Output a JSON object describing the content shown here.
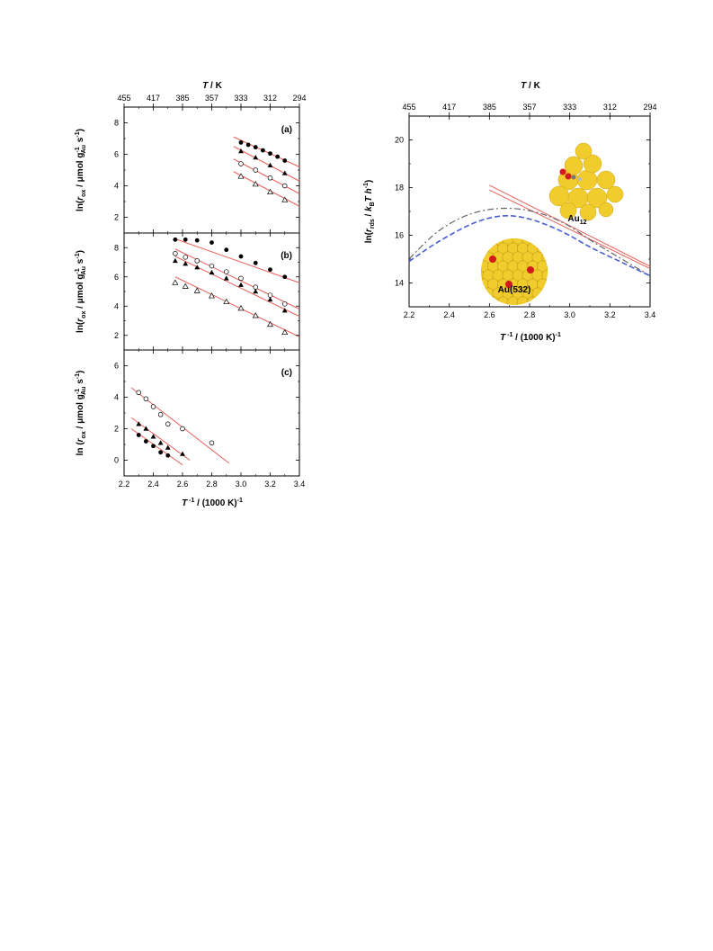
{
  "chart_data": [
    {
      "id": "a",
      "type": "scatter",
      "panel_label": "(a)",
      "xlabel": "T ⁻¹ / (1000 K)⁻¹",
      "ylabel": "ln(r ox / μmol g Au ⁻¹ s⁻¹)",
      "top_axis_label": "T / K",
      "top_ticks": [
        "455",
        "417",
        "385",
        "357",
        "333",
        "312",
        "294"
      ],
      "xlim": [
        2.2,
        3.4
      ],
      "ylim": [
        1,
        9
      ],
      "yticks": [
        2,
        4,
        6,
        8
      ],
      "grid": false,
      "series": [
        {
          "marker": "filled-circle",
          "points": [
            [
              3.0,
              6.75
            ],
            [
              3.05,
              6.6
            ],
            [
              3.1,
              6.45
            ],
            [
              3.15,
              6.25
            ],
            [
              3.2,
              6.05
            ],
            [
              3.25,
              5.85
            ],
            [
              3.3,
              5.6
            ]
          ],
          "fit": [
            [
              2.95,
              7.1
            ],
            [
              3.4,
              5.2
            ]
          ]
        },
        {
          "marker": "filled-triangle",
          "points": [
            [
              3.0,
              6.2
            ],
            [
              3.1,
              5.8
            ],
            [
              3.2,
              5.3
            ],
            [
              3.3,
              4.8
            ]
          ],
          "fit": [
            [
              2.95,
              6.5
            ],
            [
              3.4,
              4.3
            ]
          ]
        },
        {
          "marker": "open-circle",
          "points": [
            [
              3.0,
              5.4
            ],
            [
              3.1,
              5.0
            ],
            [
              3.2,
              4.5
            ],
            [
              3.3,
              4.0
            ]
          ],
          "fit": [
            [
              2.95,
              5.7
            ],
            [
              3.4,
              3.5
            ]
          ]
        },
        {
          "marker": "open-triangle",
          "points": [
            [
              3.0,
              4.6
            ],
            [
              3.1,
              4.1
            ],
            [
              3.2,
              3.6
            ],
            [
              3.3,
              3.1
            ]
          ],
          "fit": [
            [
              2.95,
              4.9
            ],
            [
              3.4,
              2.7
            ]
          ]
        }
      ]
    },
    {
      "id": "b",
      "type": "scatter",
      "panel_label": "(b)",
      "xlabel": "T ⁻¹ / (1000 K)⁻¹",
      "ylabel": "ln(r ox / μmol g Au ⁻¹ s⁻¹)",
      "xlim": [
        2.2,
        3.4
      ],
      "ylim": [
        1,
        9
      ],
      "yticks": [
        2,
        4,
        6,
        8
      ],
      "grid": false,
      "series": [
        {
          "marker": "filled-circle",
          "points": [
            [
              2.55,
              8.55
            ],
            [
              2.62,
              8.55
            ],
            [
              2.7,
              8.5
            ],
            [
              2.8,
              8.35
            ],
            [
              2.9,
              7.85
            ],
            [
              3.0,
              7.4
            ],
            [
              3.1,
              6.95
            ],
            [
              3.2,
              6.5
            ],
            [
              3.3,
              6.0
            ]
          ],
          "fit": [
            [
              2.55,
              8.6
            ],
            [
              3.4,
              5.6
            ]
          ]
        },
        {
          "marker": "filled-triangle",
          "points": [
            [
              2.55,
              7.1
            ],
            [
              2.62,
              6.9
            ],
            [
              2.7,
              6.65
            ],
            [
              2.8,
              6.3
            ],
            [
              2.9,
              5.9
            ],
            [
              3.0,
              5.45
            ],
            [
              3.1,
              5.0
            ],
            [
              3.2,
              4.45
            ],
            [
              3.3,
              3.7
            ]
          ],
          "fit": [
            [
              2.55,
              7.4
            ],
            [
              3.4,
              3.3
            ]
          ]
        },
        {
          "marker": "open-circle",
          "points": [
            [
              2.55,
              7.6
            ],
            [
              2.62,
              7.35
            ],
            [
              2.7,
              7.1
            ],
            [
              2.8,
              6.75
            ],
            [
              2.9,
              6.35
            ],
            [
              3.0,
              5.9
            ],
            [
              3.1,
              5.3
            ],
            [
              3.2,
              4.75
            ],
            [
              3.3,
              4.15
            ]
          ],
          "fit": [
            [
              2.55,
              7.9
            ],
            [
              3.4,
              3.8
            ]
          ]
        },
        {
          "marker": "open-triangle",
          "points": [
            [
              2.55,
              5.6
            ],
            [
              2.62,
              5.35
            ],
            [
              2.7,
              5.05
            ],
            [
              2.8,
              4.7
            ],
            [
              2.9,
              4.3
            ],
            [
              3.0,
              3.85
            ],
            [
              3.1,
              3.35
            ],
            [
              3.2,
              2.75
            ],
            [
              3.3,
              2.2
            ]
          ],
          "fit": [
            [
              2.55,
              6.0
            ],
            [
              3.4,
              1.9
            ]
          ]
        }
      ]
    },
    {
      "id": "c",
      "type": "scatter",
      "panel_label": "(c)",
      "xlabel": "T ⁻¹ / (1000 K)⁻¹",
      "ylabel": "ln (r ox / μmol g Au ⁻¹ s⁻¹)",
      "xlim": [
        2.2,
        3.4
      ],
      "ylim": [
        -1,
        7
      ],
      "yticks": [
        0,
        2,
        4,
        6
      ],
      "xticks": [
        "2.2",
        "2.4",
        "2.6",
        "2.8",
        "3.0",
        "3.2",
        "3.4"
      ],
      "grid": false,
      "series": [
        {
          "marker": "open-circle",
          "points": [
            [
              2.3,
              4.3
            ],
            [
              2.35,
              3.9
            ],
            [
              2.4,
              3.4
            ],
            [
              2.45,
              2.9
            ],
            [
              2.5,
              2.3
            ],
            [
              2.6,
              2.0
            ],
            [
              2.8,
              1.1
            ]
          ],
          "fit": [
            [
              2.25,
              4.6
            ],
            [
              2.92,
              -0.2
            ]
          ]
        },
        {
          "marker": "filled-triangle",
          "points": [
            [
              2.3,
              2.3
            ],
            [
              2.35,
              2.0
            ],
            [
              2.4,
              1.5
            ],
            [
              2.45,
              1.1
            ],
            [
              2.5,
              0.8
            ],
            [
              2.6,
              0.4
            ]
          ],
          "fit": [
            [
              2.25,
              2.7
            ],
            [
              2.65,
              0.0
            ]
          ]
        },
        {
          "marker": "filled-circle",
          "points": [
            [
              2.3,
              1.6
            ],
            [
              2.35,
              1.2
            ],
            [
              2.4,
              0.9
            ],
            [
              2.45,
              0.5
            ],
            [
              2.5,
              0.3
            ]
          ],
          "fit": [
            [
              2.25,
              2.0
            ],
            [
              2.6,
              -0.3
            ]
          ]
        }
      ]
    },
    {
      "id": "d",
      "type": "line",
      "xlabel": "T ⁻¹ / (1000 K)⁻¹",
      "ylabel": "ln(r rds / k B T h⁻¹)",
      "top_axis_label": "T / K",
      "top_ticks": [
        "455",
        "417",
        "385",
        "357",
        "333",
        "312",
        "294"
      ],
      "xticks": [
        "2.2",
        "2.4",
        "2.6",
        "2.8",
        "3.0",
        "3.2",
        "3.4"
      ],
      "xlim": [
        2.2,
        3.4
      ],
      "ylim": [
        13,
        21
      ],
      "yticks": [
        14,
        16,
        18,
        20
      ],
      "grid": false,
      "series": [
        {
          "style": "solid-red",
          "points": [
            [
              2.6,
              18.1
            ],
            [
              3.4,
              14.7
            ]
          ]
        },
        {
          "style": "solid-red",
          "points": [
            [
              2.6,
              17.9
            ],
            [
              3.4,
              14.6
            ]
          ]
        },
        {
          "style": "dash-dot-gray",
          "points": [
            [
              2.2,
              15.0
            ],
            [
              2.3,
              15.9
            ],
            [
              2.4,
              16.5
            ],
            [
              2.5,
              16.9
            ],
            [
              2.6,
              17.1
            ],
            [
              2.7,
              17.15
            ],
            [
              2.8,
              17.05
            ],
            [
              2.9,
              16.8
            ],
            [
              3.0,
              16.4
            ],
            [
              3.1,
              15.8
            ],
            [
              3.2,
              15.3
            ],
            [
              3.3,
              14.8
            ],
            [
              3.4,
              14.3
            ]
          ]
        },
        {
          "style": "dashed-blue",
          "points": [
            [
              2.2,
              14.9
            ],
            [
              2.3,
              15.5
            ],
            [
              2.4,
              16.0
            ],
            [
              2.5,
              16.45
            ],
            [
              2.6,
              16.75
            ],
            [
              2.7,
              16.85
            ],
            [
              2.8,
              16.7
            ],
            [
              2.9,
              16.4
            ],
            [
              3.0,
              16.0
            ],
            [
              3.1,
              15.5
            ],
            [
              3.2,
              15.1
            ],
            [
              3.3,
              14.7
            ],
            [
              3.4,
              14.3
            ]
          ]
        }
      ],
      "insets": [
        {
          "label_main": "Au",
          "label_sub": "12"
        },
        {
          "label_main": "Au(532)"
        }
      ],
      "colors": {
        "fit": "#e8605a",
        "dashblue": "#4a5fd0",
        "dashgray": "#666666",
        "gold": "#f1cc2d",
        "oxygen": "#d21c1c"
      }
    }
  ]
}
